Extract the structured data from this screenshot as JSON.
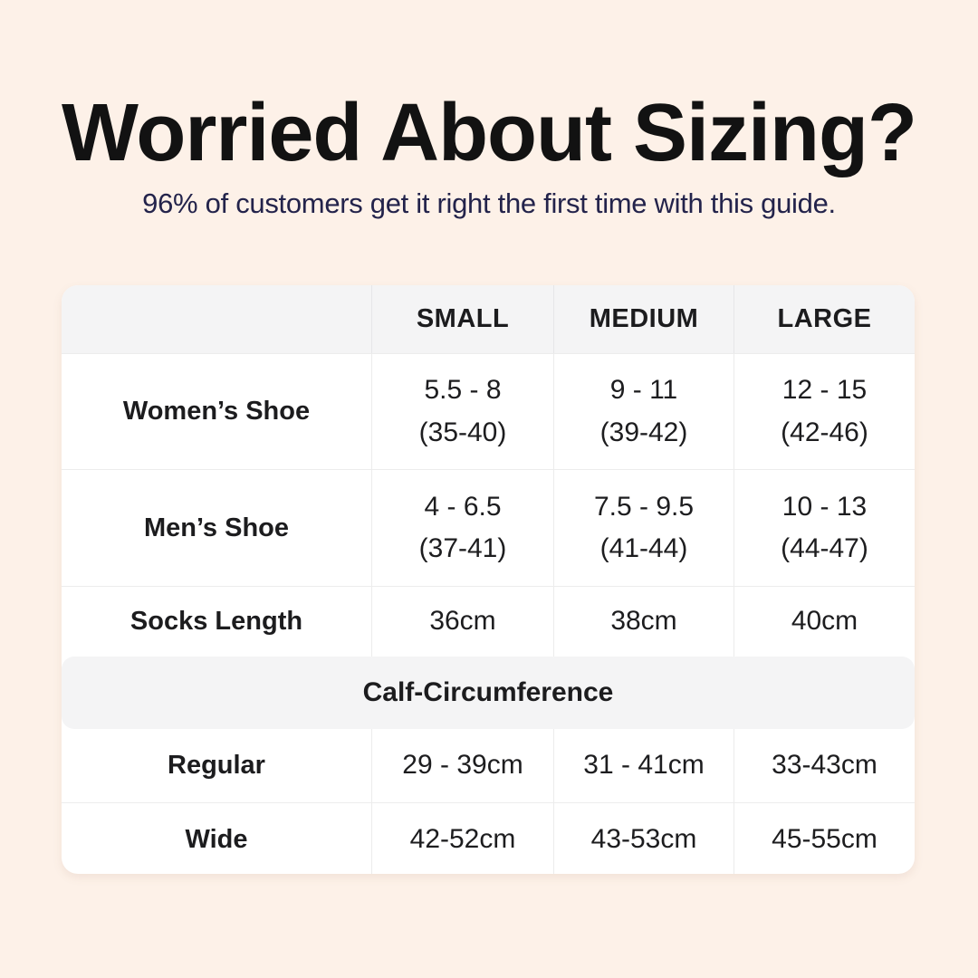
{
  "page": {
    "title": "Worried About Sizing?",
    "subtitle": "96% of customers get it right the first time with this guide."
  },
  "colors": {
    "background": "#fdf1e8",
    "card": "#ffffff",
    "band_gray": "#f4f4f5",
    "divider": "#ececec",
    "title_text": "#121212",
    "subtitle_text": "#23234b",
    "table_text": "#1d1d1f"
  },
  "size_table": {
    "column_headers": [
      "SMALL",
      "MEDIUM",
      "LARGE"
    ],
    "rows": [
      {
        "label": "Women’s Shoe",
        "cells": [
          {
            "line1": "5.5 - 8",
            "line2": "(35-40)"
          },
          {
            "line1": "9 - 11",
            "line2": "(39-42)"
          },
          {
            "line1": "12 - 15",
            "line2": "(42-46)"
          }
        ]
      },
      {
        "label": "Men’s Shoe",
        "cells": [
          {
            "line1": "4 - 6.5",
            "line2": "(37-41)"
          },
          {
            "line1": "7.5 - 9.5",
            "line2": "(41-44)"
          },
          {
            "line1": "10 - 13",
            "line2": "(44-47)"
          }
        ]
      },
      {
        "label": "Socks Length",
        "cells": [
          {
            "line1": "36cm"
          },
          {
            "line1": "38cm"
          },
          {
            "line1": "40cm"
          }
        ]
      }
    ],
    "calf_section": {
      "title": "Calf-Circumference",
      "rows": [
        {
          "label": "Regular",
          "cells": [
            "29 - 39cm",
            "31 - 41cm",
            "33-43cm"
          ]
        },
        {
          "label": "Wide",
          "cells": [
            "42-52cm",
            "43-53cm",
            "45-55cm"
          ]
        }
      ]
    }
  },
  "chart_data": {
    "type": "table",
    "title": "Worried About Sizing?",
    "subtitle": "96% of customers get it right the first time with this guide.",
    "columns": [
      "",
      "SMALL",
      "MEDIUM",
      "LARGE"
    ],
    "rows": [
      [
        "Women’s Shoe",
        "5.5 - 8 (35-40)",
        "9 - 11 (39-42)",
        "12 - 15 (42-46)"
      ],
      [
        "Men’s Shoe",
        "4 - 6.5 (37-41)",
        "7.5 - 9.5 (41-44)",
        "10 - 13 (44-47)"
      ],
      [
        "Socks Length",
        "36cm",
        "38cm",
        "40cm"
      ],
      [
        "Calf-Circumference (section header)",
        "",
        "",
        ""
      ],
      [
        "Regular",
        "29 - 39cm",
        "31 - 41cm",
        "33-43cm"
      ],
      [
        "Wide",
        "42-52cm",
        "43-53cm",
        "45-55cm"
      ]
    ],
    "layout_hints": {
      "header_background": "#f4f4f5",
      "body_background": "#ffffff",
      "section_band_full_width": true,
      "grid": "light-gray dividers"
    }
  }
}
